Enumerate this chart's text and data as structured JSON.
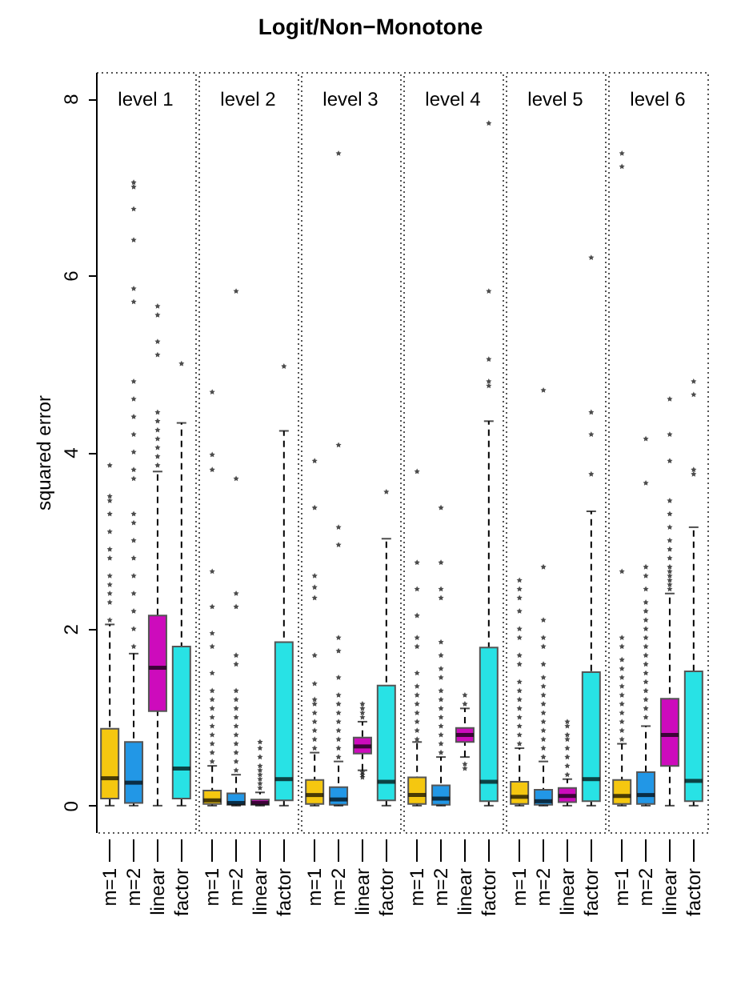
{
  "chart_data": {
    "type": "box",
    "title": "Logit/Non−Monotone",
    "ylabel": "squared error",
    "annotations": [
      "level 1",
      "level 2",
      "level 3",
      "level 4",
      "level 5",
      "level 6"
    ],
    "categories": [
      "m=1",
      "m=2",
      "linear",
      "factor",
      "m=1",
      "m=2",
      "linear",
      "factor",
      "m=1",
      "m=2",
      "linear",
      "factor",
      "m=1",
      "m=2",
      "linear",
      "factor",
      "m=1",
      "m=2",
      "linear",
      "factor",
      "m=1",
      "m=2",
      "linear",
      "factor"
    ],
    "colors": [
      "#f5c710",
      "#2297e6",
      "#cd0bbc",
      "#28e2e5",
      "#f5c710",
      "#2297e6",
      "#cd0bbc",
      "#28e2e5",
      "#f5c710",
      "#2297e6",
      "#cd0bbc",
      "#28e2e5",
      "#f5c710",
      "#2297e6",
      "#cd0bbc",
      "#28e2e5",
      "#f5c710",
      "#2297e6",
      "#cd0bbc",
      "#28e2e5",
      "#f5c710",
      "#2297e6",
      "#cd0bbc",
      "#28e2e5"
    ],
    "ylim": [
      -0.3,
      8.3
    ],
    "yticks": [
      0,
      2,
      4,
      6,
      8
    ],
    "grid": false,
    "marker": "star",
    "line_style": "dashed",
    "boxes": [
      {
        "low": 0,
        "q1": 0.08,
        "median": 0.31,
        "q3": 0.87,
        "high": 2.05,
        "outliers": [
          2.1,
          2.3,
          2.4,
          2.5,
          2.6,
          2.8,
          2.9,
          3.1,
          3.3,
          3.45,
          3.5,
          3.85
        ]
      },
      {
        "low": 0,
        "q1": 0.03,
        "median": 0.26,
        "q3": 0.72,
        "high": 1.72,
        "outliers": [
          1.8,
          2.0,
          2.2,
          2.4,
          2.6,
          2.8,
          3.0,
          3.2,
          3.3,
          3.7,
          3.8,
          4.0,
          4.2,
          4.4,
          4.6,
          4.8,
          5.7,
          5.85,
          6.4,
          6.75,
          7.0,
          7.05
        ]
      },
      {
        "low": 0,
        "q1": 1.07,
        "median": 1.56,
        "q3": 2.15,
        "high": 3.78,
        "outliers": [
          3.85,
          3.95,
          4.05,
          4.15,
          4.25,
          4.35,
          4.45,
          5.1,
          5.25,
          5.55,
          5.65
        ]
      },
      {
        "low": 0,
        "q1": 0.08,
        "median": 0.42,
        "q3": 1.8,
        "high": 4.33,
        "outliers": [
          5.0
        ]
      },
      {
        "low": 0,
        "q1": 0.02,
        "median": 0.06,
        "q3": 0.17,
        "high": 0.45,
        "outliers": [
          0.5,
          0.6,
          0.7,
          0.8,
          0.9,
          1.0,
          1.1,
          1.2,
          1.3,
          1.5,
          1.8,
          1.95,
          2.25,
          2.65,
          3.8,
          3.97,
          4.68
        ]
      },
      {
        "low": 0,
        "q1": 0.01,
        "median": 0.03,
        "q3": 0.14,
        "high": 0.35,
        "outliers": [
          0.4,
          0.5,
          0.6,
          0.7,
          0.8,
          0.9,
          1.0,
          1.1,
          1.2,
          1.3,
          1.6,
          1.7,
          2.25,
          2.4,
          3.7,
          5.82
        ]
      },
      {
        "low": 0,
        "q1": 0.01,
        "median": 0.03,
        "q3": 0.07,
        "high": 0.15,
        "outliers": [
          0.2,
          0.25,
          0.3,
          0.35,
          0.4,
          0.45,
          0.55,
          0.65,
          0.72
        ]
      },
      {
        "low": 0,
        "q1": 0.06,
        "median": 0.3,
        "q3": 1.85,
        "high": 4.24,
        "outliers": [
          4.97
        ]
      },
      {
        "low": 0,
        "q1": 0.02,
        "median": 0.12,
        "q3": 0.29,
        "high": 0.6,
        "outliers": [
          0.65,
          0.75,
          0.85,
          0.95,
          1.05,
          1.15,
          1.2,
          1.38,
          1.7,
          2.35,
          2.47,
          2.6,
          3.37,
          3.9
        ]
      },
      {
        "low": 0,
        "q1": 0.01,
        "median": 0.07,
        "q3": 0.21,
        "high": 0.5,
        "outliers": [
          0.55,
          0.65,
          0.75,
          0.85,
          0.95,
          1.05,
          1.15,
          1.25,
          1.45,
          1.75,
          1.9,
          2.95,
          3.15,
          4.08,
          7.38
        ]
      },
      {
        "low": 0.4,
        "q1": 0.59,
        "median": 0.67,
        "q3": 0.77,
        "high": 0.95,
        "outliers": [
          0.32,
          0.35,
          0.38,
          1.0,
          1.05,
          1.1,
          1.15
        ]
      },
      {
        "low": 0,
        "q1": 0.06,
        "median": 0.27,
        "q3": 1.36,
        "high": 3.02,
        "outliers": [
          3.55
        ]
      },
      {
        "low": 0,
        "q1": 0.02,
        "median": 0.12,
        "q3": 0.32,
        "high": 0.72,
        "outliers": [
          0.75,
          0.85,
          0.95,
          1.05,
          1.15,
          1.25,
          1.35,
          1.5,
          1.8,
          1.9,
          2.15,
          2.45,
          2.75,
          3.78
        ]
      },
      {
        "low": 0,
        "q1": 0.01,
        "median": 0.08,
        "q3": 0.23,
        "high": 0.55,
        "outliers": [
          0.6,
          0.7,
          0.8,
          0.9,
          1.0,
          1.1,
          1.2,
          1.3,
          1.45,
          1.55,
          1.7,
          1.85,
          2.35,
          2.45,
          2.75,
          3.37
        ]
      },
      {
        "low": 0.55,
        "q1": 0.72,
        "median": 0.8,
        "q3": 0.88,
        "high": 1.1,
        "outliers": [
          0.42,
          0.47,
          1.15,
          1.25
        ]
      },
      {
        "low": 0,
        "q1": 0.05,
        "median": 0.27,
        "q3": 1.79,
        "high": 4.35,
        "outliers": [
          4.75,
          4.8,
          5.05,
          5.82,
          7.72
        ]
      },
      {
        "low": 0,
        "q1": 0.02,
        "median": 0.1,
        "q3": 0.27,
        "high": 0.65,
        "outliers": [
          0.7,
          0.8,
          0.9,
          1.0,
          1.1,
          1.2,
          1.3,
          1.4,
          1.6,
          1.7,
          1.9,
          2.0,
          2.2,
          2.35,
          2.45,
          2.55
        ]
      },
      {
        "low": 0,
        "q1": 0.01,
        "median": 0.05,
        "q3": 0.18,
        "high": 0.5,
        "outliers": [
          0.55,
          0.65,
          0.75,
          0.85,
          0.95,
          1.05,
          1.15,
          1.25,
          1.35,
          1.45,
          1.6,
          1.8,
          1.9,
          2.1,
          2.7,
          4.7
        ]
      },
      {
        "low": 0,
        "q1": 0.04,
        "median": 0.11,
        "q3": 0.2,
        "high": 0.3,
        "outliers": [
          0.35,
          0.45,
          0.55,
          0.65,
          0.75,
          0.8,
          0.9,
          0.95
        ]
      },
      {
        "low": 0,
        "q1": 0.05,
        "median": 0.3,
        "q3": 1.51,
        "high": 3.33,
        "outliers": [
          3.75,
          4.2,
          4.45,
          6.2
        ]
      },
      {
        "low": 0,
        "q1": 0.02,
        "median": 0.11,
        "q3": 0.29,
        "high": 0.7,
        "outliers": [
          0.75,
          0.85,
          0.95,
          1.05,
          1.15,
          1.25,
          1.35,
          1.45,
          1.55,
          1.65,
          1.8,
          1.9,
          2.65,
          7.23,
          7.38
        ]
      },
      {
        "low": 0,
        "q1": 0.02,
        "median": 0.12,
        "q3": 0.38,
        "high": 0.9,
        "outliers": [
          1.0,
          1.1,
          1.2,
          1.3,
          1.4,
          1.5,
          1.6,
          1.7,
          1.8,
          1.9,
          2.0,
          2.1,
          2.2,
          2.3,
          2.45,
          2.6,
          2.7,
          3.65,
          4.15
        ]
      },
      {
        "low": 0,
        "q1": 0.45,
        "median": 0.8,
        "q3": 1.21,
        "high": 2.4,
        "outliers": [
          2.45,
          2.5,
          2.55,
          2.6,
          2.65,
          2.7,
          2.8,
          2.9,
          3.0,
          3.15,
          3.3,
          3.45,
          3.9,
          4.2,
          4.6
        ]
      },
      {
        "low": 0,
        "q1": 0.05,
        "median": 0.28,
        "q3": 1.52,
        "high": 3.15,
        "outliers": [
          3.75,
          3.8,
          4.65,
          4.8
        ]
      }
    ]
  }
}
